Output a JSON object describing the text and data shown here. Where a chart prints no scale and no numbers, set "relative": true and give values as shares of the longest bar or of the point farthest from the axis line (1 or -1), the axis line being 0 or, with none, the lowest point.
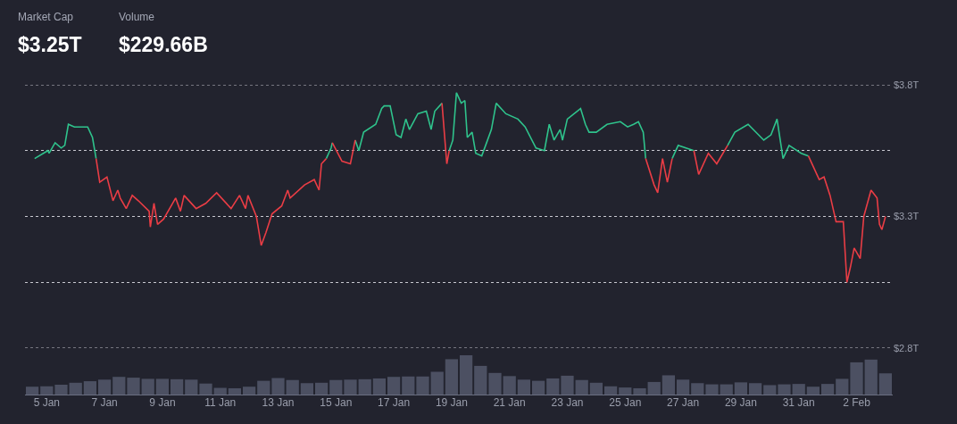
{
  "chart_data": [
    {
      "type": "line",
      "annotations": [
        "Market Cap",
        "$3.25T",
        "Volume",
        "$229.66B"
      ],
      "x": [
        "--01-04T14:00",
        "--01-05T01:00",
        "--01-05T02:00",
        "--01-05T07:00",
        "--01-05T12:00",
        "--01-05T15:00",
        "--01-05T18:00",
        "--01-05T23:00",
        "--01-06T10:00",
        "--01-06T14:00",
        "--01-06T17:00",
        "--01-06T20:00",
        "--01-07T02:00",
        "--01-07T07:00",
        "--01-07T11:00",
        "--01-07T13:00",
        "--01-07T18:00",
        "--01-07T23:00",
        "--01-08T04:00",
        "--01-08T13:00",
        "--01-08T14:00",
        "--01-08T17:00",
        "--01-08T20:00",
        "--01-09T01:00",
        "--01-09T11:00",
        "--01-09T15:00",
        "--01-09T18:00",
        "--01-10T04:00",
        "--01-10T12:00",
        "--01-10T21:00",
        "--01-11T09:00",
        "--01-11T16:00",
        "--01-11T21:00",
        "--01-11T23:00",
        "--01-12T06:00",
        "--01-12T10:00",
        "--01-12T14:00",
        "--01-12T19:00",
        "--01-13T03:00",
        "--01-13T08:00",
        "--01-13T10:00",
        "--01-13T22:00",
        "--01-14T06:00",
        "--01-14T10:00",
        "--01-14T12:00",
        "--01-14T16:00",
        "--01-14T20:00",
        "--01-14T21:00",
        "--01-15T05:00",
        "--01-15T12:00",
        "--01-15T16:00",
        "--01-15T19:00",
        "--01-15T23:00",
        "--01-16T09:00",
        "--01-16T14:00",
        "--01-16T16:00",
        "--01-16T21:00",
        "--01-17T02:00",
        "--01-17T06:00",
        "--01-17T10:00",
        "--01-17T13:00",
        "--01-17T20:00",
        "--01-18T03:00",
        "--01-18T07:00",
        "--01-18T10:00",
        "--01-18T16:00",
        "--01-18T20:00",
        "--01-18T22:00",
        "--01-19T01:00",
        "--01-19T04:00",
        "--01-19T08:00",
        "--01-19T11:00",
        "--01-19T13:00",
        "--01-19T17:00",
        "--01-19T20:00",
        "--01-20T01:00",
        "--01-20T05:00",
        "--01-20T09:00",
        "--01-20T13:00",
        "--01-20T21:00",
        "--01-21T07:00",
        "--01-21T13:00",
        "--01-21T22:00",
        "--01-22T05:00",
        "--01-22T09:00",
        "--01-22T13:00",
        "--01-22T18:00",
        "--01-22T20:00",
        "--01-23T00:00",
        "--01-23T11:00",
        "--01-23T15:00",
        "--01-23T18:00",
        "--01-24T00:00",
        "--01-24T09:00",
        "--01-24T20:00",
        "--01-25T02:00",
        "--01-25T07:00",
        "--01-25T11:00",
        "--01-25T15:00",
        "--01-25T17:00",
        "--01-26T00:00",
        "--01-26T03:00",
        "--01-26T07:00",
        "--01-26T11:00",
        "--01-26T15:00",
        "--01-26T20:00",
        "--01-27T09:00",
        "--01-27T13:00",
        "--01-27T21:00",
        "--01-28T04:00",
        "--01-28T13:00",
        "--01-28T19:00",
        "--01-29T06:00",
        "--01-29T19:00",
        "--01-30T01:00",
        "--01-30T06:00",
        "--01-30T11:00",
        "--01-30T16:00",
        "--01-31T02:00",
        "--01-31T08:00",
        "--01-31T17:00",
        "--01-31T21:00",
        "--02-01T02:00",
        "--02-01T07:00",
        "--02-01T13:00",
        "--02-01T16:00",
        "--02-01T19:00",
        "--02-01T22:00",
        "--02-02T03:00",
        "--02-02T06:00",
        "--02-02T12:00",
        "--02-02T17:00",
        "--02-02T19:00",
        "--02-02T21:00",
        "--02-03T00:00"
      ],
      "series": [
        {
          "color": "#2fc38c",
          "values": [
            3.52,
            3.55,
            3.54,
            3.58,
            3.56,
            3.57,
            3.65,
            3.64,
            3.64,
            3.6,
            3.52,
            null,
            null,
            null,
            null,
            null,
            null,
            null,
            null,
            null,
            null,
            null,
            null,
            null,
            null,
            null,
            null,
            null,
            null,
            null,
            null,
            null,
            null,
            null,
            null,
            null,
            null,
            null,
            null,
            null,
            null,
            null,
            null,
            null,
            null,
            3.52,
            3.56,
            3.58,
            null,
            null,
            3.59,
            3.55,
            3.62,
            3.65,
            3.71,
            3.72,
            3.72,
            3.61,
            3.6,
            3.67,
            3.63,
            3.69,
            3.7,
            3.63,
            3.7,
            3.73,
            null,
            3.55,
            3.59,
            3.77,
            3.73,
            3.74,
            3.6,
            3.62,
            3.54,
            3.53,
            3.58,
            3.63,
            3.73,
            3.69,
            3.67,
            3.64,
            3.56,
            3.55,
            3.65,
            3.59,
            3.63,
            3.59,
            3.67,
            3.71,
            3.65,
            3.62,
            3.62,
            3.65,
            3.66,
            3.64,
            3.65,
            3.66,
            3.62,
            3.52,
            null,
            null,
            null,
            null,
            3.52,
            3.57,
            3.55,
            null,
            null,
            null,
            3.57,
            3.62,
            3.65,
            3.59,
            3.61,
            3.67,
            3.52,
            3.57,
            3.54,
            3.53,
            null,
            null,
            null,
            null,
            null,
            null,
            null,
            null,
            null,
            null,
            null,
            null,
            null,
            null,
            null
          ]
        },
        {
          "color": "#ea3d45",
          "values": [
            null,
            null,
            null,
            null,
            null,
            null,
            null,
            null,
            null,
            null,
            3.52,
            3.43,
            3.45,
            3.36,
            3.4,
            3.37,
            3.33,
            3.38,
            3.36,
            3.32,
            3.26,
            3.35,
            3.27,
            3.29,
            3.37,
            3.32,
            3.38,
            3.33,
            3.35,
            3.39,
            3.33,
            3.38,
            3.33,
            3.38,
            3.3,
            3.19,
            3.24,
            3.31,
            3.34,
            3.4,
            3.37,
            3.42,
            3.44,
            3.4,
            3.5,
            3.52,
            null,
            3.58,
            3.51,
            3.5,
            3.59,
            null,
            null,
            null,
            null,
            null,
            null,
            null,
            null,
            null,
            null,
            null,
            null,
            null,
            null,
            3.73,
            3.5,
            3.55,
            null,
            null,
            null,
            null,
            null,
            null,
            null,
            null,
            null,
            null,
            null,
            null,
            null,
            null,
            null,
            null,
            null,
            null,
            null,
            null,
            null,
            null,
            null,
            null,
            null,
            null,
            null,
            null,
            null,
            null,
            null,
            3.52,
            3.42,
            3.39,
            3.52,
            3.43,
            3.52,
            null,
            3.55,
            3.46,
            3.54,
            3.5,
            3.57,
            null,
            null,
            null,
            null,
            null,
            null,
            null,
            null,
            3.53,
            3.44,
            3.45,
            3.38,
            3.28,
            3.28,
            3.05,
            3.11,
            3.18,
            3.14,
            3.3,
            3.4,
            3.37,
            3.27,
            3.25,
            3.3
          ]
        }
      ],
      "xlim": [
        "--01-04T06:00",
        "--02-03T06:00"
      ],
      "ylim": [
        2.8,
        3.8
      ],
      "yticks": [
        {
          "value": 3.8,
          "label": "$3.8T"
        },
        {
          "value": 3.55,
          "label": null
        },
        {
          "value": 3.3,
          "label": "$3.3T"
        },
        {
          "value": 3.05,
          "label": null
        },
        {
          "value": 2.8,
          "label": "$2.8T"
        }
      ],
      "xticks": [
        {
          "value": "--01-05",
          "label": "5 Jan"
        },
        {
          "value": "--01-07",
          "label": "7 Jan"
        },
        {
          "value": "--01-09",
          "label": "9 Jan"
        },
        {
          "value": "--01-11",
          "label": "11 Jan"
        },
        {
          "value": "--01-13",
          "label": "13 Jan"
        },
        {
          "value": "--01-15",
          "label": "15 Jan"
        },
        {
          "value": "--01-17",
          "label": "17 Jan"
        },
        {
          "value": "--01-19",
          "label": "19 Jan"
        },
        {
          "value": "--01-21",
          "label": "21 Jan"
        },
        {
          "value": "--01-23",
          "label": "23 Jan"
        },
        {
          "value": "--01-25",
          "label": "25 Jan"
        },
        {
          "value": "--01-27",
          "label": "27 Jan"
        },
        {
          "value": "--01-29",
          "label": "29 Jan"
        },
        {
          "value": "--01-31",
          "label": "31 Jan"
        },
        {
          "value": "--02-02",
          "label": "2 Feb"
        }
      ],
      "grid": "y"
    },
    {
      "type": "bar",
      "relative": true,
      "color": "#4c5062",
      "categories": [
        null,
        null,
        null,
        null,
        null,
        null,
        null,
        null,
        null,
        null,
        null,
        null,
        null,
        null,
        null,
        null,
        null,
        null,
        null,
        null,
        null,
        null,
        null,
        null,
        null,
        null,
        null,
        null,
        null,
        null,
        null,
        null,
        null,
        null,
        null,
        null,
        null,
        null,
        null,
        null,
        null,
        null,
        null,
        null,
        null,
        null,
        null,
        null,
        null,
        null,
        null,
        null,
        null,
        null,
        null,
        null,
        null,
        null,
        null,
        null
      ],
      "values": [
        0.2,
        0.21,
        0.25,
        0.3,
        0.34,
        0.38,
        0.45,
        0.43,
        0.4,
        0.4,
        0.39,
        0.38,
        0.28,
        0.17,
        0.16,
        0.2,
        0.35,
        0.42,
        0.37,
        0.29,
        0.3,
        0.37,
        0.38,
        0.39,
        0.41,
        0.45,
        0.46,
        0.46,
        0.58,
        0.9,
        1,
        0.73,
        0.55,
        0.47,
        0.38,
        0.35,
        0.41,
        0.48,
        0.37,
        0.3,
        0.21,
        0.18,
        0.16,
        0.32,
        0.49,
        0.38,
        0.29,
        0.26,
        0.26,
        0.31,
        0.29,
        0.24,
        0.26,
        0.27,
        0.2,
        0.27,
        0.4,
        0.82,
        0.89,
        0.54
      ]
    }
  ]
}
